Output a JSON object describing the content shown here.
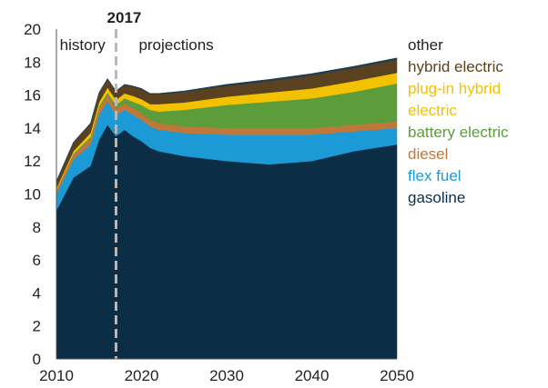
{
  "chart_data": {
    "type": "area",
    "stacked": true,
    "title": "",
    "xlabel": "",
    "ylabel": "",
    "xlim": [
      2010,
      2050
    ],
    "ylim": [
      0,
      20
    ],
    "x_ticks": [
      "2010",
      "2020",
      "2030",
      "2040",
      "2050"
    ],
    "y_ticks": [
      "0",
      "2",
      "4",
      "6",
      "8",
      "10",
      "12",
      "14",
      "16",
      "18",
      "20"
    ],
    "grid": false,
    "legend_position": "right",
    "divider": {
      "x": 2017,
      "label": "2017"
    },
    "annotations": {
      "left": "history",
      "right": "projections"
    },
    "x": [
      2010,
      2012,
      2014,
      2015,
      2016,
      2017,
      2018,
      2019,
      2020,
      2021,
      2022,
      2025,
      2030,
      2035,
      2040,
      2045,
      2050
    ],
    "series": [
      {
        "name": "gasoline",
        "color": "#0b2d45",
        "values": [
          9.0,
          11.0,
          11.7,
          13.3,
          14.2,
          13.5,
          13.9,
          13.5,
          13.2,
          12.8,
          12.6,
          12.3,
          12.0,
          11.8,
          12.0,
          12.6,
          13.0
        ]
      },
      {
        "name": "flex fuel",
        "color": "#1b9ad6",
        "values": [
          1.0,
          1.1,
          1.3,
          1.5,
          1.4,
          1.3,
          1.2,
          1.3,
          1.3,
          1.3,
          1.3,
          1.4,
          1.6,
          1.8,
          1.6,
          1.2,
          1.0
        ]
      },
      {
        "name": "diesel",
        "color": "#c0783a",
        "values": [
          0.25,
          0.3,
          0.35,
          0.4,
          0.4,
          0.4,
          0.4,
          0.4,
          0.4,
          0.4,
          0.4,
          0.4,
          0.4,
          0.4,
          0.4,
          0.4,
          0.4
        ]
      },
      {
        "name": "battery electric",
        "color": "#5c9c3b",
        "values": [
          0.0,
          0.05,
          0.1,
          0.1,
          0.15,
          0.2,
          0.3,
          0.4,
          0.5,
          0.6,
          0.7,
          1.0,
          1.4,
          1.6,
          1.8,
          2.0,
          2.3
        ]
      },
      {
        "name": "electric",
        "color": "#f2c200",
        "values": [
          0.05,
          0.1,
          0.15,
          0.15,
          0.2,
          0.2,
          0.2,
          0.25,
          0.25,
          0.25,
          0.3,
          0.3,
          0.35,
          0.4,
          0.4,
          0.45,
          0.45
        ]
      },
      {
        "name": "plug-in hybrid",
        "color": "#f2c200",
        "values": [
          0.05,
          0.05,
          0.1,
          0.1,
          0.1,
          0.1,
          0.1,
          0.1,
          0.1,
          0.1,
          0.15,
          0.15,
          0.15,
          0.15,
          0.2,
          0.2,
          0.2
        ]
      },
      {
        "name": "hybrid electric",
        "color": "#5a4220",
        "values": [
          0.4,
          0.5,
          0.55,
          0.55,
          0.5,
          0.5,
          0.5,
          0.55,
          0.6,
          0.6,
          0.6,
          0.65,
          0.65,
          0.7,
          0.8,
          0.8,
          0.8
        ]
      },
      {
        "name": "other",
        "color": "#1f3d4d",
        "values": [
          0.05,
          0.05,
          0.05,
          0.05,
          0.05,
          0.05,
          0.05,
          0.05,
          0.05,
          0.05,
          0.05,
          0.05,
          0.1,
          0.1,
          0.1,
          0.1,
          0.1
        ]
      }
    ],
    "legend": [
      {
        "label": "other",
        "color": "#222222"
      },
      {
        "label": "hybrid electric",
        "color": "#5a4220"
      },
      {
        "label": "plug-in hybrid",
        "color": "#f2c200"
      },
      {
        "label": "electric",
        "color": "#f2c200"
      },
      {
        "label": "battery electric",
        "color": "#5c9c3b"
      },
      {
        "label": "diesel",
        "color": "#c0783a"
      },
      {
        "label": "flex fuel",
        "color": "#1b9ad6"
      },
      {
        "label": "gasoline",
        "color": "#0b2d45"
      }
    ]
  }
}
